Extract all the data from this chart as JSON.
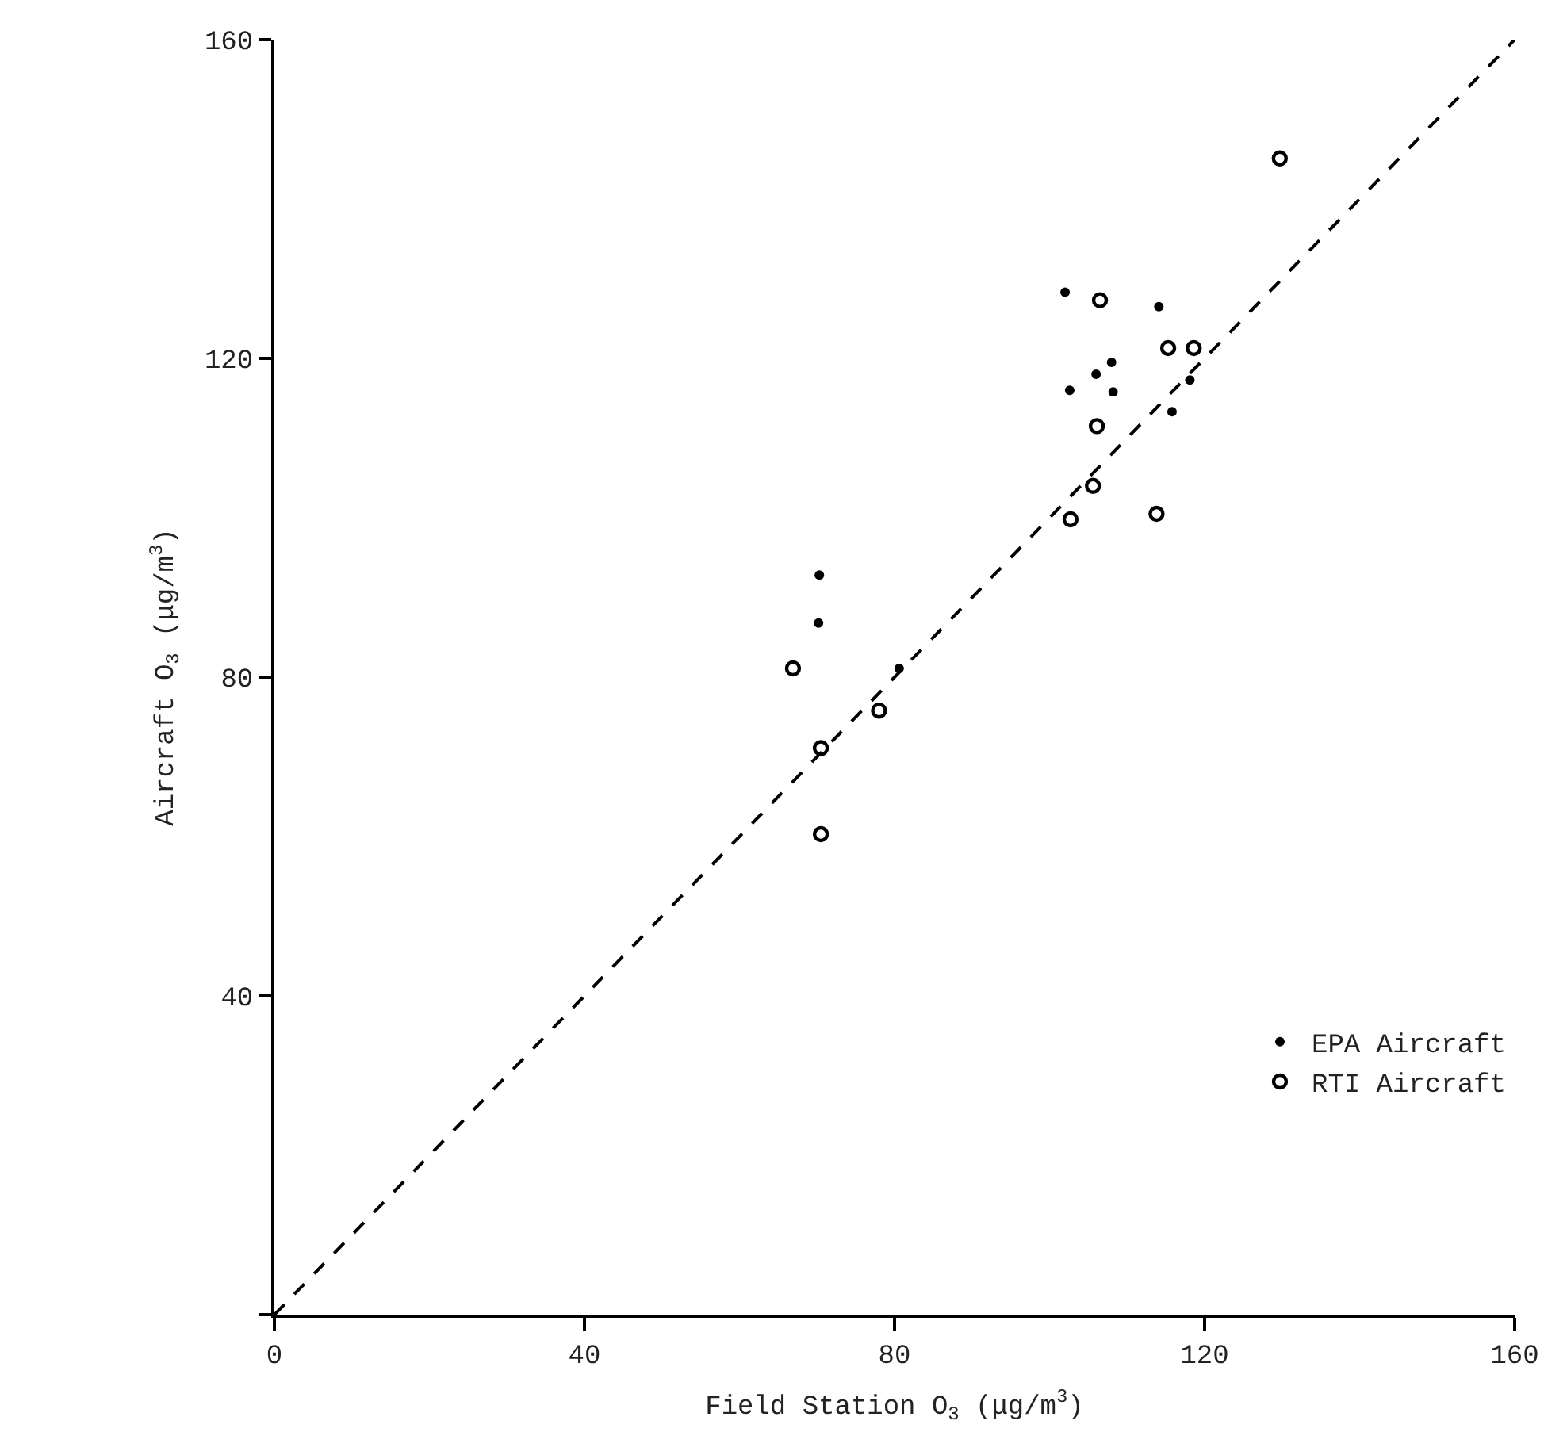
{
  "chart_data": {
    "type": "scatter",
    "xlabel": "Field Station O$_{3}$ (μg/m$^{3}$)",
    "ylabel": "Aircraft O$_{3}$ (μg/m$^{3}$)",
    "xlim": [
      0,
      160
    ],
    "ylim": [
      0,
      160
    ],
    "xticks": [
      0,
      40,
      80,
      120,
      160
    ],
    "yticks": [
      {
        "value": 0,
        "label": null
      },
      40,
      80,
      120,
      160
    ],
    "legend": "bottom right",
    "series": [
      {
        "name": "EPA Aircraft",
        "color": "#000000",
        "marker": "circle",
        "x": [
          70.3,
          70.2,
          80.6,
          102.0,
          114.1,
          108.0,
          106.0,
          102.6,
          108.2,
          118.1,
          115.8
        ],
        "values": [
          92.8,
          86.8,
          81.1,
          128.3,
          126.5,
          119.5,
          118.0,
          116.0,
          115.8,
          117.3,
          113.3
        ]
      },
      {
        "name": "RTI Aircraft",
        "color": "#000000",
        "marker": "circle-open",
        "x": [
          129.7,
          106.5,
          115.3,
          118.6,
          106.1,
          105.6,
          102.7,
          113.8,
          66.9,
          78.0,
          70.5,
          70.5
        ],
        "values": [
          145.1,
          127.3,
          121.3,
          121.3,
          111.5,
          104.0,
          99.8,
          100.5,
          81.1,
          75.8,
          71.1,
          60.3
        ]
      },
      {
        "type": "line",
        "color": "#000000",
        "line_style": "dashed",
        "marker": "none",
        "x": [
          0,
          160
        ],
        "values": [
          0,
          160
        ]
      }
    ]
  }
}
